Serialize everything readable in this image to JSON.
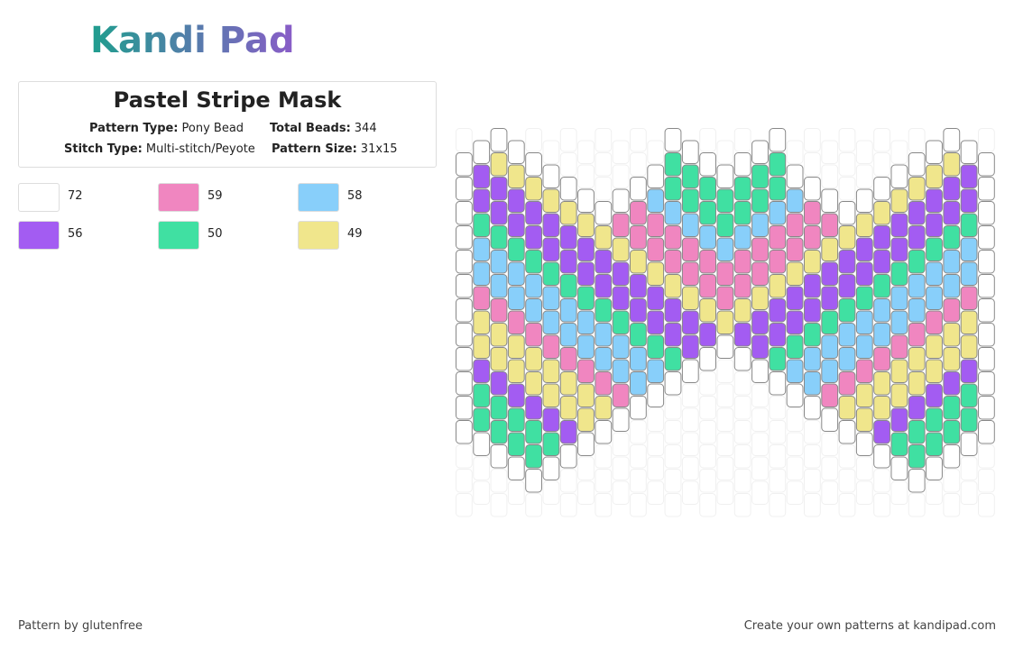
{
  "logo": {
    "text": "Kandi Pad"
  },
  "pattern": {
    "title": "Pastel Stripe Mask",
    "fields": [
      {
        "label": "Pattern Type:",
        "value": "Pony Bead"
      },
      {
        "label": "Total Beads:",
        "value": "344"
      },
      {
        "label": "Stitch Type:",
        "value": "Multi-stitch/Peyote"
      },
      {
        "label": "Pattern Size:",
        "value": "31x15"
      }
    ]
  },
  "legend": [
    {
      "color": "#ffffff",
      "count": 72
    },
    {
      "color": "#f086c0",
      "count": 59
    },
    {
      "color": "#88cffa",
      "count": 58
    },
    {
      "color": "#a35cf2",
      "count": 56
    },
    {
      "color": "#40e0a2",
      "count": 50
    },
    {
      "color": "#f0e68c",
      "count": 49
    }
  ],
  "footer": {
    "left": "Pattern by glutenfree",
    "right": "Create your own patterns at kandipad.com"
  }
}
